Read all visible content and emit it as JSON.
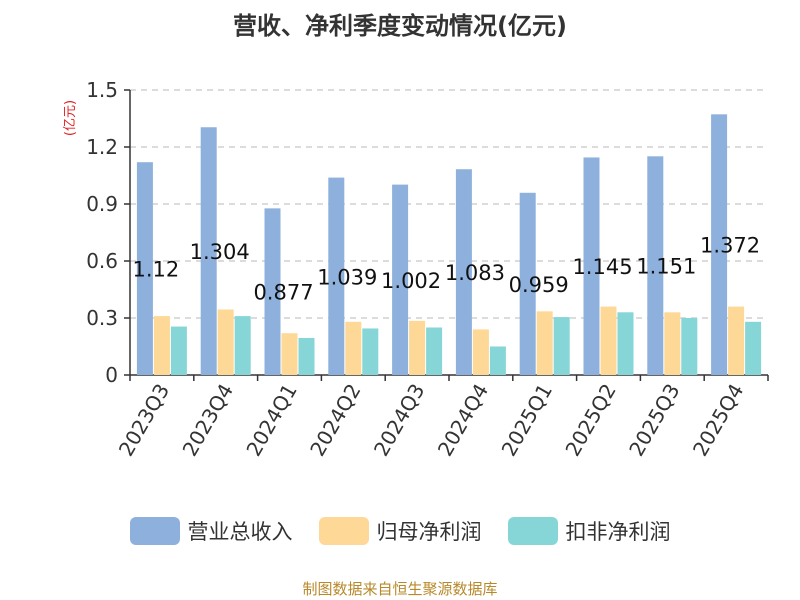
{
  "chart_data": {
    "type": "bar",
    "title": "营收、净利季度变动情况(亿元)",
    "unit_label": "(亿元)",
    "categories": [
      "2023Q3",
      "2023Q4",
      "2024Q1",
      "2024Q2",
      "2024Q3",
      "2024Q4",
      "2025Q1",
      "2025Q2",
      "2025Q3",
      "2025Q4"
    ],
    "series": [
      {
        "name": "营业总收入",
        "color": "#8eb0dc",
        "values": [
          1.12,
          1.304,
          0.877,
          1.039,
          1.002,
          1.083,
          0.959,
          1.145,
          1.151,
          1.372
        ],
        "show_labels": true
      },
      {
        "name": "归母净利润",
        "color": "#fdd896",
        "values": [
          0.31,
          0.345,
          0.22,
          0.28,
          0.285,
          0.24,
          0.335,
          0.36,
          0.33,
          0.36
        ],
        "show_labels": false
      },
      {
        "name": "扣非净利润",
        "color": "#86d6d8",
        "values": [
          0.255,
          0.31,
          0.195,
          0.245,
          0.25,
          0.15,
          0.305,
          0.33,
          0.3,
          0.28
        ],
        "show_labels": false
      }
    ],
    "yticks": [
      "0",
      "0.3",
      "0.6",
      "0.9",
      "1.2",
      "1.5"
    ],
    "ylim": [
      0,
      1.5
    ],
    "grid": true,
    "legend": "bottom"
  },
  "footer": {
    "source": "制图数据来自恒生聚源数据库"
  }
}
